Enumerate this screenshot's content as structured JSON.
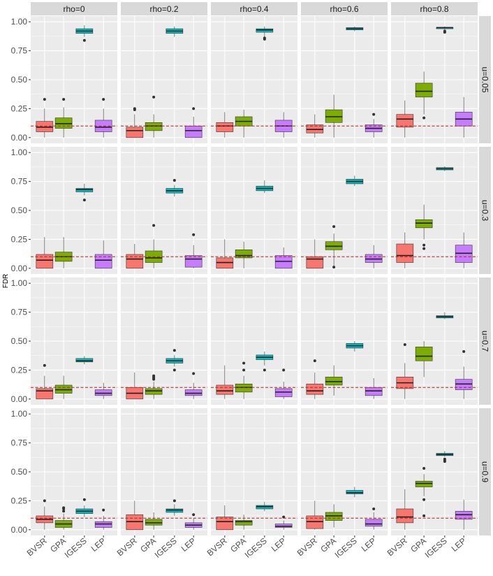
{
  "chart_data": {
    "type": "boxplot",
    "facet_cols": [
      "rho=0",
      "rho=0.2",
      "rho=0.4",
      "rho=0.6",
      "rho=0.8"
    ],
    "facet_rows": [
      "u=0.05",
      "u=0.3",
      "u=0.7",
      "u=0.9"
    ],
    "categories": [
      "BVSR",
      "GPA",
      "IGESS",
      "LEP"
    ],
    "ylabel": "FDR",
    "xlabel": "",
    "ylim": [
      0,
      1
    ],
    "yticks": [
      "0.00",
      "0.25",
      "0.50",
      "0.75",
      "1.00"
    ],
    "reference_line": 0.1,
    "colors": {
      "BVSR": "#F8766D",
      "GPA": "#7CAE00",
      "IGESS": "#00BFC4",
      "LEP": "#C77CFF",
      "reference_line": "#B22222",
      "panel_bg": "#EBEBEB",
      "strip_bg": "#D9D9D9"
    },
    "panels": [
      [
        [
          [
            0.0,
            0.05,
            0.09,
            0.14,
            0.25,
            [
              0.33
            ]
          ],
          [
            0.0,
            0.08,
            0.12,
            0.17,
            0.26,
            [
              0.33
            ]
          ],
          [
            0.87,
            0.9,
            0.92,
            0.94,
            0.97,
            [
              0.84
            ]
          ],
          [
            0.0,
            0.05,
            0.09,
            0.15,
            0.25,
            [
              0.33
            ]
          ]
        ],
        [
          [
            0.0,
            0.0,
            0.06,
            0.09,
            0.2,
            [
              0.24,
              0.25
            ]
          ],
          [
            0.0,
            0.06,
            0.1,
            0.13,
            0.2,
            [
              0.35
            ]
          ],
          [
            0.87,
            0.9,
            0.92,
            0.94,
            0.96,
            []
          ],
          [
            0.0,
            0.0,
            0.06,
            0.1,
            0.18,
            [
              0.25
            ]
          ]
        ],
        [
          [
            0.0,
            0.05,
            0.1,
            0.13,
            0.22,
            []
          ],
          [
            0.0,
            0.1,
            0.14,
            0.18,
            0.24,
            []
          ],
          [
            0.87,
            0.91,
            0.93,
            0.94,
            0.96,
            [
              0.86,
              0.85
            ]
          ],
          [
            0.0,
            0.05,
            0.1,
            0.15,
            0.22,
            []
          ]
        ],
        [
          [
            0.0,
            0.04,
            0.07,
            0.11,
            0.2,
            []
          ],
          [
            0.0,
            0.13,
            0.18,
            0.24,
            0.37,
            []
          ],
          [
            0.92,
            0.93,
            0.94,
            0.95,
            0.96,
            []
          ],
          [
            0.0,
            0.05,
            0.08,
            0.11,
            0.16,
            [
              0.2
            ]
          ]
        ],
        [
          [
            0.0,
            0.09,
            0.16,
            0.2,
            0.32,
            []
          ],
          [
            0.2,
            0.35,
            0.4,
            0.47,
            0.57,
            [
              0.17
            ]
          ],
          [
            0.93,
            0.94,
            0.95,
            0.95,
            0.96,
            [
              0.92,
              0.91
            ]
          ],
          [
            0.0,
            0.1,
            0.16,
            0.22,
            0.35,
            []
          ]
        ]
      ],
      [
        [
          [
            0.0,
            0.0,
            0.07,
            0.12,
            0.27,
            []
          ],
          [
            0.0,
            0.06,
            0.1,
            0.14,
            0.27,
            []
          ],
          [
            0.63,
            0.66,
            0.68,
            0.69,
            0.73,
            [
              0.59
            ]
          ],
          [
            0.0,
            0.0,
            0.07,
            0.12,
            0.24,
            []
          ]
        ],
        [
          [
            0.0,
            0.0,
            0.08,
            0.12,
            0.21,
            []
          ],
          [
            0.0,
            0.05,
            0.09,
            0.15,
            0.25,
            [
              0.37
            ]
          ],
          [
            0.62,
            0.65,
            0.67,
            0.69,
            0.72,
            [
              0.76
            ]
          ],
          [
            0.0,
            0.01,
            0.08,
            0.11,
            0.2,
            [
              0.29
            ]
          ]
        ],
        [
          [
            0.0,
            0.0,
            0.05,
            0.09,
            0.25,
            []
          ],
          [
            0.0,
            0.09,
            0.11,
            0.16,
            0.23,
            []
          ],
          [
            0.65,
            0.67,
            0.69,
            0.71,
            0.76,
            []
          ],
          [
            0.0,
            0.0,
            0.06,
            0.11,
            0.18,
            []
          ]
        ],
        [
          [
            0.0,
            0.0,
            0.08,
            0.1,
            0.25,
            []
          ],
          [
            0.0,
            0.16,
            0.19,
            0.23,
            0.3,
            [
              0.36,
              0.01
            ]
          ],
          [
            0.71,
            0.73,
            0.75,
            0.77,
            0.8,
            []
          ],
          [
            0.0,
            0.05,
            0.08,
            0.12,
            0.2,
            []
          ]
        ],
        [
          [
            0.0,
            0.05,
            0.11,
            0.21,
            0.31,
            []
          ],
          [
            0.25,
            0.35,
            0.39,
            0.42,
            0.55,
            [
              0.2,
              0.17
            ]
          ],
          [
            0.84,
            0.85,
            0.86,
            0.87,
            0.88,
            []
          ],
          [
            0.0,
            0.05,
            0.13,
            0.2,
            0.31,
            []
          ]
        ]
      ],
      [
        [
          [
            0.0,
            0.0,
            0.07,
            0.09,
            0.2,
            [
              0.29
            ]
          ],
          [
            0.0,
            0.05,
            0.08,
            0.12,
            0.2,
            []
          ],
          [
            0.3,
            0.32,
            0.33,
            0.35,
            0.37,
            []
          ],
          [
            0.0,
            0.03,
            0.05,
            0.08,
            0.14,
            []
          ]
        ],
        [
          [
            0.0,
            0.0,
            0.05,
            0.1,
            0.23,
            []
          ],
          [
            0.0,
            0.04,
            0.07,
            0.09,
            0.15,
            [
              0.17,
              0.18,
              0.19,
              0.2
            ]
          ],
          [
            0.28,
            0.31,
            0.33,
            0.35,
            0.38,
            [
              0.42,
              0.25
            ]
          ],
          [
            0.0,
            0.03,
            0.05,
            0.08,
            0.14,
            [
              0.22
            ]
          ]
        ],
        [
          [
            0.0,
            0.04,
            0.07,
            0.12,
            0.29,
            []
          ],
          [
            0.0,
            0.06,
            0.1,
            0.13,
            0.2,
            [
              0.31,
              0.25
            ]
          ],
          [
            0.29,
            0.34,
            0.36,
            0.38,
            0.41,
            [
              0.25
            ]
          ],
          [
            0.0,
            0.02,
            0.06,
            0.09,
            0.15,
            [
              0.25
            ]
          ]
        ],
        [
          [
            0.0,
            0.04,
            0.07,
            0.13,
            0.23,
            [
              0.33
            ]
          ],
          [
            0.03,
            0.12,
            0.15,
            0.19,
            0.29,
            []
          ],
          [
            0.41,
            0.44,
            0.46,
            0.48,
            0.5,
            []
          ],
          [
            0.0,
            0.03,
            0.07,
            0.1,
            0.18,
            []
          ]
        ],
        [
          [
            0.0,
            0.09,
            0.14,
            0.19,
            0.31,
            [
              0.47
            ]
          ],
          [
            0.19,
            0.33,
            0.37,
            0.45,
            0.5,
            []
          ],
          [
            0.69,
            0.7,
            0.71,
            0.72,
            0.75,
            []
          ],
          [
            0.0,
            0.08,
            0.13,
            0.17,
            0.28,
            [
              0.41
            ]
          ]
        ]
      ],
      [
        [
          [
            0.0,
            0.06,
            0.09,
            0.12,
            0.2,
            [
              0.25
            ]
          ],
          [
            0.0,
            0.02,
            0.05,
            0.08,
            0.14,
            [
              0.16,
              0.18,
              0.19
            ]
          ],
          [
            0.11,
            0.14,
            0.16,
            0.18,
            0.21,
            [
              0.26
            ]
          ],
          [
            0.0,
            0.02,
            0.05,
            0.07,
            0.12,
            [
              0.17
            ]
          ]
        ],
        [
          [
            0.0,
            0.0,
            0.07,
            0.13,
            0.25,
            []
          ],
          [
            0.0,
            0.04,
            0.06,
            0.09,
            0.15,
            []
          ],
          [
            0.12,
            0.15,
            0.17,
            0.18,
            0.22,
            [
              0.25
            ]
          ],
          [
            0.0,
            0.02,
            0.04,
            0.06,
            0.1,
            [
              0.13
            ]
          ]
        ],
        [
          [
            0.0,
            0.0,
            0.07,
            0.11,
            0.21,
            []
          ],
          [
            0.0,
            0.04,
            0.07,
            0.08,
            0.13,
            []
          ],
          [
            0.16,
            0.18,
            0.2,
            0.21,
            0.24,
            []
          ],
          [
            0.0,
            0.02,
            0.03,
            0.05,
            0.08,
            [
              0.11
            ]
          ]
        ],
        [
          [
            0.0,
            0.01,
            0.07,
            0.12,
            0.25,
            []
          ],
          [
            0.02,
            0.08,
            0.12,
            0.15,
            0.22,
            []
          ],
          [
            0.28,
            0.31,
            0.32,
            0.34,
            0.37,
            []
          ],
          [
            0.0,
            0.03,
            0.05,
            0.09,
            0.15,
            [
              0.18
            ]
          ]
        ],
        [
          [
            0.0,
            0.06,
            0.11,
            0.18,
            0.35,
            []
          ],
          [
            0.29,
            0.37,
            0.4,
            0.42,
            0.48,
            [
              0.53,
              0.26,
              0.12
            ]
          ],
          [
            0.63,
            0.64,
            0.65,
            0.66,
            0.68,
            [
              0.61,
              0.6,
              0.59
            ]
          ],
          [
            0.0,
            0.09,
            0.13,
            0.16,
            0.26,
            []
          ]
        ]
      ]
    ]
  }
}
